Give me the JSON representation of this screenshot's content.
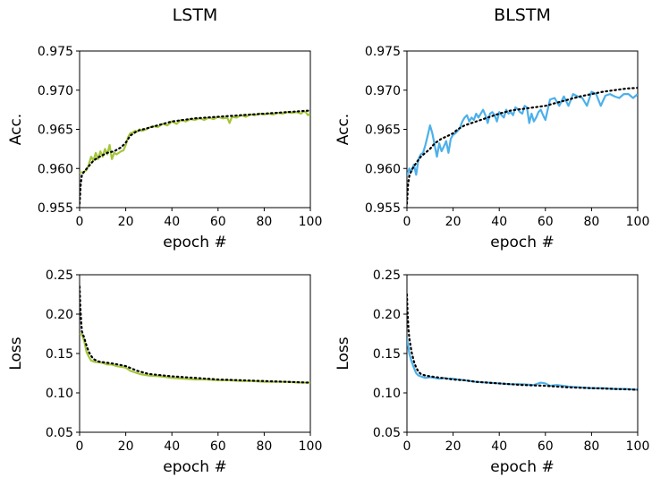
{
  "chart_data": [
    {
      "type": "line",
      "title": "LSTM",
      "xlabel": "epoch #",
      "ylabel": "Acc.",
      "xlim": [
        0,
        100
      ],
      "ylim": [
        0.955,
        0.975
      ],
      "x_ticks": [
        "0",
        "20",
        "40",
        "60",
        "80",
        "100"
      ],
      "y_ticks": [
        "0.955",
        "0.960",
        "0.965",
        "0.970",
        "0.975"
      ],
      "series_colors": [
        "#a4c639",
        "#000000"
      ],
      "series": [
        {
          "style": "solid",
          "x": [
            0,
            1,
            2,
            3,
            4,
            5,
            6,
            7,
            8,
            9,
            10,
            11,
            12,
            13,
            14,
            15,
            16,
            17,
            18,
            19,
            20,
            21,
            22,
            23,
            24,
            25,
            26,
            27,
            28,
            29,
            30,
            32,
            34,
            36,
            38,
            40,
            42,
            44,
            46,
            48,
            50,
            52,
            54,
            56,
            58,
            60,
            62,
            64,
            65,
            66,
            68,
            70,
            72,
            74,
            76,
            78,
            80,
            82,
            84,
            86,
            88,
            90,
            92,
            94,
            96,
            97,
            98,
            99,
            100
          ],
          "values": [
            0.9595,
            0.9595,
            0.9596,
            0.9598,
            0.9605,
            0.9615,
            0.961,
            0.962,
            0.9612,
            0.9622,
            0.9615,
            0.9625,
            0.9618,
            0.963,
            0.9612,
            0.962,
            0.9618,
            0.962,
            0.9622,
            0.9623,
            0.963,
            0.964,
            0.9645,
            0.9646,
            0.9648,
            0.9647,
            0.965,
            0.9648,
            0.9649,
            0.965,
            0.9652,
            0.9654,
            0.9653,
            0.9657,
            0.9655,
            0.966,
            0.9657,
            0.9662,
            0.966,
            0.9663,
            0.9662,
            0.9664,
            0.9662,
            0.9665,
            0.9663,
            0.9666,
            0.9664,
            0.9665,
            0.9658,
            0.9666,
            0.9665,
            0.9668,
            0.9666,
            0.9669,
            0.9668,
            0.967,
            0.9669,
            0.967,
            0.9669,
            0.9671,
            0.967,
            0.9672,
            0.9671,
            0.9672,
            0.967,
            0.9673,
            0.9672,
            0.9668,
            0.967
          ]
        },
        {
          "style": "dotted",
          "x": [
            0,
            0.5,
            1,
            2,
            4,
            6,
            8,
            10,
            12,
            15,
            18,
            20,
            22,
            25,
            30,
            35,
            40,
            45,
            50,
            55,
            60,
            65,
            70,
            75,
            80,
            85,
            90,
            95,
            100
          ],
          "values": [
            0.9555,
            0.958,
            0.9592,
            0.9596,
            0.9603,
            0.961,
            0.9614,
            0.9617,
            0.962,
            0.9622,
            0.9627,
            0.9633,
            0.9642,
            0.9648,
            0.9652,
            0.9656,
            0.966,
            0.9662,
            0.9664,
            0.9665,
            0.9666,
            0.9667,
            0.9668,
            0.9669,
            0.967,
            0.9671,
            0.9672,
            0.9673,
            0.9674
          ]
        }
      ]
    },
    {
      "type": "line",
      "title": "BLSTM",
      "xlabel": "epoch #",
      "ylabel": "Acc.",
      "xlim": [
        0,
        100
      ],
      "ylim": [
        0.955,
        0.975
      ],
      "x_ticks": [
        "0",
        "20",
        "40",
        "60",
        "80",
        "100"
      ],
      "y_ticks": [
        "0.955",
        "0.960",
        "0.965",
        "0.970",
        "0.975"
      ],
      "series_colors": [
        "#4db0ea",
        "#000000"
      ],
      "series": [
        {
          "style": "solid",
          "x": [
            0,
            1,
            2,
            3,
            4,
            5,
            6,
            7,
            8,
            9,
            10,
            11,
            12,
            13,
            14,
            15,
            16,
            17,
            18,
            19,
            20,
            21,
            22,
            23,
            24,
            25,
            26,
            27,
            28,
            29,
            30,
            31,
            32,
            33,
            34,
            35,
            36,
            37,
            38,
            39,
            40,
            41,
            42,
            43,
            44,
            45,
            46,
            47,
            48,
            49,
            50,
            51,
            52,
            53,
            54,
            55,
            56,
            57,
            58,
            59,
            60,
            62,
            64,
            66,
            68,
            70,
            72,
            74,
            76,
            78,
            80,
            82,
            84,
            86,
            88,
            90,
            92,
            94,
            96,
            98,
            100
          ],
          "values": [
            0.959,
            0.96,
            0.9596,
            0.9605,
            0.9592,
            0.9612,
            0.9618,
            0.962,
            0.963,
            0.9642,
            0.9655,
            0.9645,
            0.963,
            0.9615,
            0.9632,
            0.9622,
            0.9628,
            0.9635,
            0.962,
            0.9638,
            0.9643,
            0.9645,
            0.9648,
            0.9652,
            0.966,
            0.9665,
            0.9668,
            0.966,
            0.9665,
            0.9662,
            0.967,
            0.9665,
            0.967,
            0.9675,
            0.9668,
            0.9658,
            0.967,
            0.9672,
            0.9668,
            0.966,
            0.9672,
            0.9668,
            0.9665,
            0.9675,
            0.967,
            0.9672,
            0.9668,
            0.9678,
            0.9676,
            0.9672,
            0.967,
            0.968,
            0.9678,
            0.9658,
            0.967,
            0.966,
            0.9665,
            0.9672,
            0.9675,
            0.9668,
            0.9662,
            0.9688,
            0.969,
            0.968,
            0.9692,
            0.968,
            0.9695,
            0.9692,
            0.969,
            0.968,
            0.9698,
            0.9695,
            0.968,
            0.9693,
            0.9695,
            0.9692,
            0.969,
            0.9695,
            0.9695,
            0.969,
            0.9695
          ]
        },
        {
          "style": "dotted",
          "x": [
            0,
            0.5,
            1,
            2,
            4,
            6,
            8,
            10,
            12,
            15,
            18,
            20,
            22,
            25,
            30,
            35,
            40,
            45,
            50,
            55,
            60,
            65,
            70,
            75,
            80,
            85,
            90,
            95,
            100
          ],
          "values": [
            0.9555,
            0.958,
            0.959,
            0.9598,
            0.9607,
            0.9615,
            0.962,
            0.9625,
            0.9632,
            0.9638,
            0.9642,
            0.9645,
            0.965,
            0.9655,
            0.966,
            0.9665,
            0.967,
            0.9674,
            0.9676,
            0.9678,
            0.968,
            0.9684,
            0.9688,
            0.9692,
            0.9695,
            0.9698,
            0.97,
            0.9702,
            0.9703
          ]
        }
      ]
    },
    {
      "type": "line",
      "title": "",
      "xlabel": "epoch #",
      "ylabel": "Loss",
      "xlim": [
        0,
        100
      ],
      "ylim": [
        0.05,
        0.25
      ],
      "x_ticks": [
        "0",
        "20",
        "40",
        "60",
        "80",
        "100"
      ],
      "y_ticks": [
        "0.05",
        "0.10",
        "0.15",
        "0.20",
        "0.25"
      ],
      "series_colors": [
        "#a4c639",
        "#000000"
      ],
      "series": [
        {
          "style": "solid",
          "x": [
            0,
            1,
            2,
            3,
            4,
            5,
            6,
            7,
            8,
            10,
            12,
            14,
            16,
            18,
            20,
            22,
            24,
            26,
            28,
            30,
            35,
            40,
            45,
            50,
            55,
            60,
            65,
            70,
            75,
            80,
            85,
            90,
            95,
            100
          ],
          "values": [
            0.175,
            0.174,
            0.166,
            0.152,
            0.146,
            0.141,
            0.14,
            0.139,
            0.139,
            0.138,
            0.136,
            0.136,
            0.134,
            0.133,
            0.132,
            0.128,
            0.126,
            0.124,
            0.123,
            0.122,
            0.121,
            0.119,
            0.118,
            0.117,
            0.117,
            0.116,
            0.116,
            0.115,
            0.115,
            0.114,
            0.114,
            0.114,
            0.113,
            0.113
          ]
        },
        {
          "style": "dotted",
          "x": [
            0,
            0.3,
            0.7,
            1,
            2,
            3,
            4,
            5,
            6,
            8,
            10,
            15,
            20,
            25,
            30,
            40,
            50,
            60,
            70,
            80,
            90,
            100
          ],
          "values": [
            0.235,
            0.21,
            0.19,
            0.178,
            0.17,
            0.16,
            0.152,
            0.147,
            0.143,
            0.14,
            0.139,
            0.137,
            0.134,
            0.128,
            0.124,
            0.121,
            0.119,
            0.117,
            0.116,
            0.115,
            0.114,
            0.113
          ]
        }
      ]
    },
    {
      "type": "line",
      "title": "",
      "xlabel": "epoch #",
      "ylabel": "Loss",
      "xlim": [
        0,
        100
      ],
      "ylim": [
        0.05,
        0.25
      ],
      "x_ticks": [
        "0",
        "20",
        "40",
        "60",
        "80",
        "100"
      ],
      "y_ticks": [
        "0.05",
        "0.10",
        "0.15",
        "0.20",
        "0.25"
      ],
      "series_colors": [
        "#4db0ea",
        "#000000"
      ],
      "series": [
        {
          "style": "solid",
          "x": [
            0,
            0.5,
            1,
            2,
            3,
            4,
            5,
            6,
            7,
            8,
            10,
            12,
            14,
            16,
            18,
            20,
            22,
            25,
            30,
            35,
            40,
            45,
            50,
            55,
            58,
            60,
            62,
            65,
            70,
            75,
            80,
            85,
            90,
            95,
            100
          ],
          "values": [
            0.17,
            0.16,
            0.15,
            0.14,
            0.132,
            0.125,
            0.122,
            0.121,
            0.12,
            0.119,
            0.12,
            0.119,
            0.118,
            0.119,
            0.118,
            0.118,
            0.117,
            0.116,
            0.114,
            0.113,
            0.112,
            0.111,
            0.111,
            0.11,
            0.113,
            0.112,
            0.109,
            0.11,
            0.108,
            0.107,
            0.106,
            0.106,
            0.105,
            0.105,
            0.104
          ]
        },
        {
          "style": "dotted",
          "x": [
            0,
            0.3,
            0.7,
            1,
            2,
            3,
            4,
            5,
            6,
            8,
            10,
            15,
            20,
            25,
            30,
            40,
            50,
            60,
            70,
            80,
            90,
            100
          ],
          "values": [
            0.225,
            0.2,
            0.18,
            0.17,
            0.152,
            0.14,
            0.132,
            0.127,
            0.124,
            0.122,
            0.121,
            0.119,
            0.117,
            0.116,
            0.114,
            0.112,
            0.11,
            0.109,
            0.107,
            0.106,
            0.105,
            0.104
          ]
        }
      ]
    }
  ]
}
